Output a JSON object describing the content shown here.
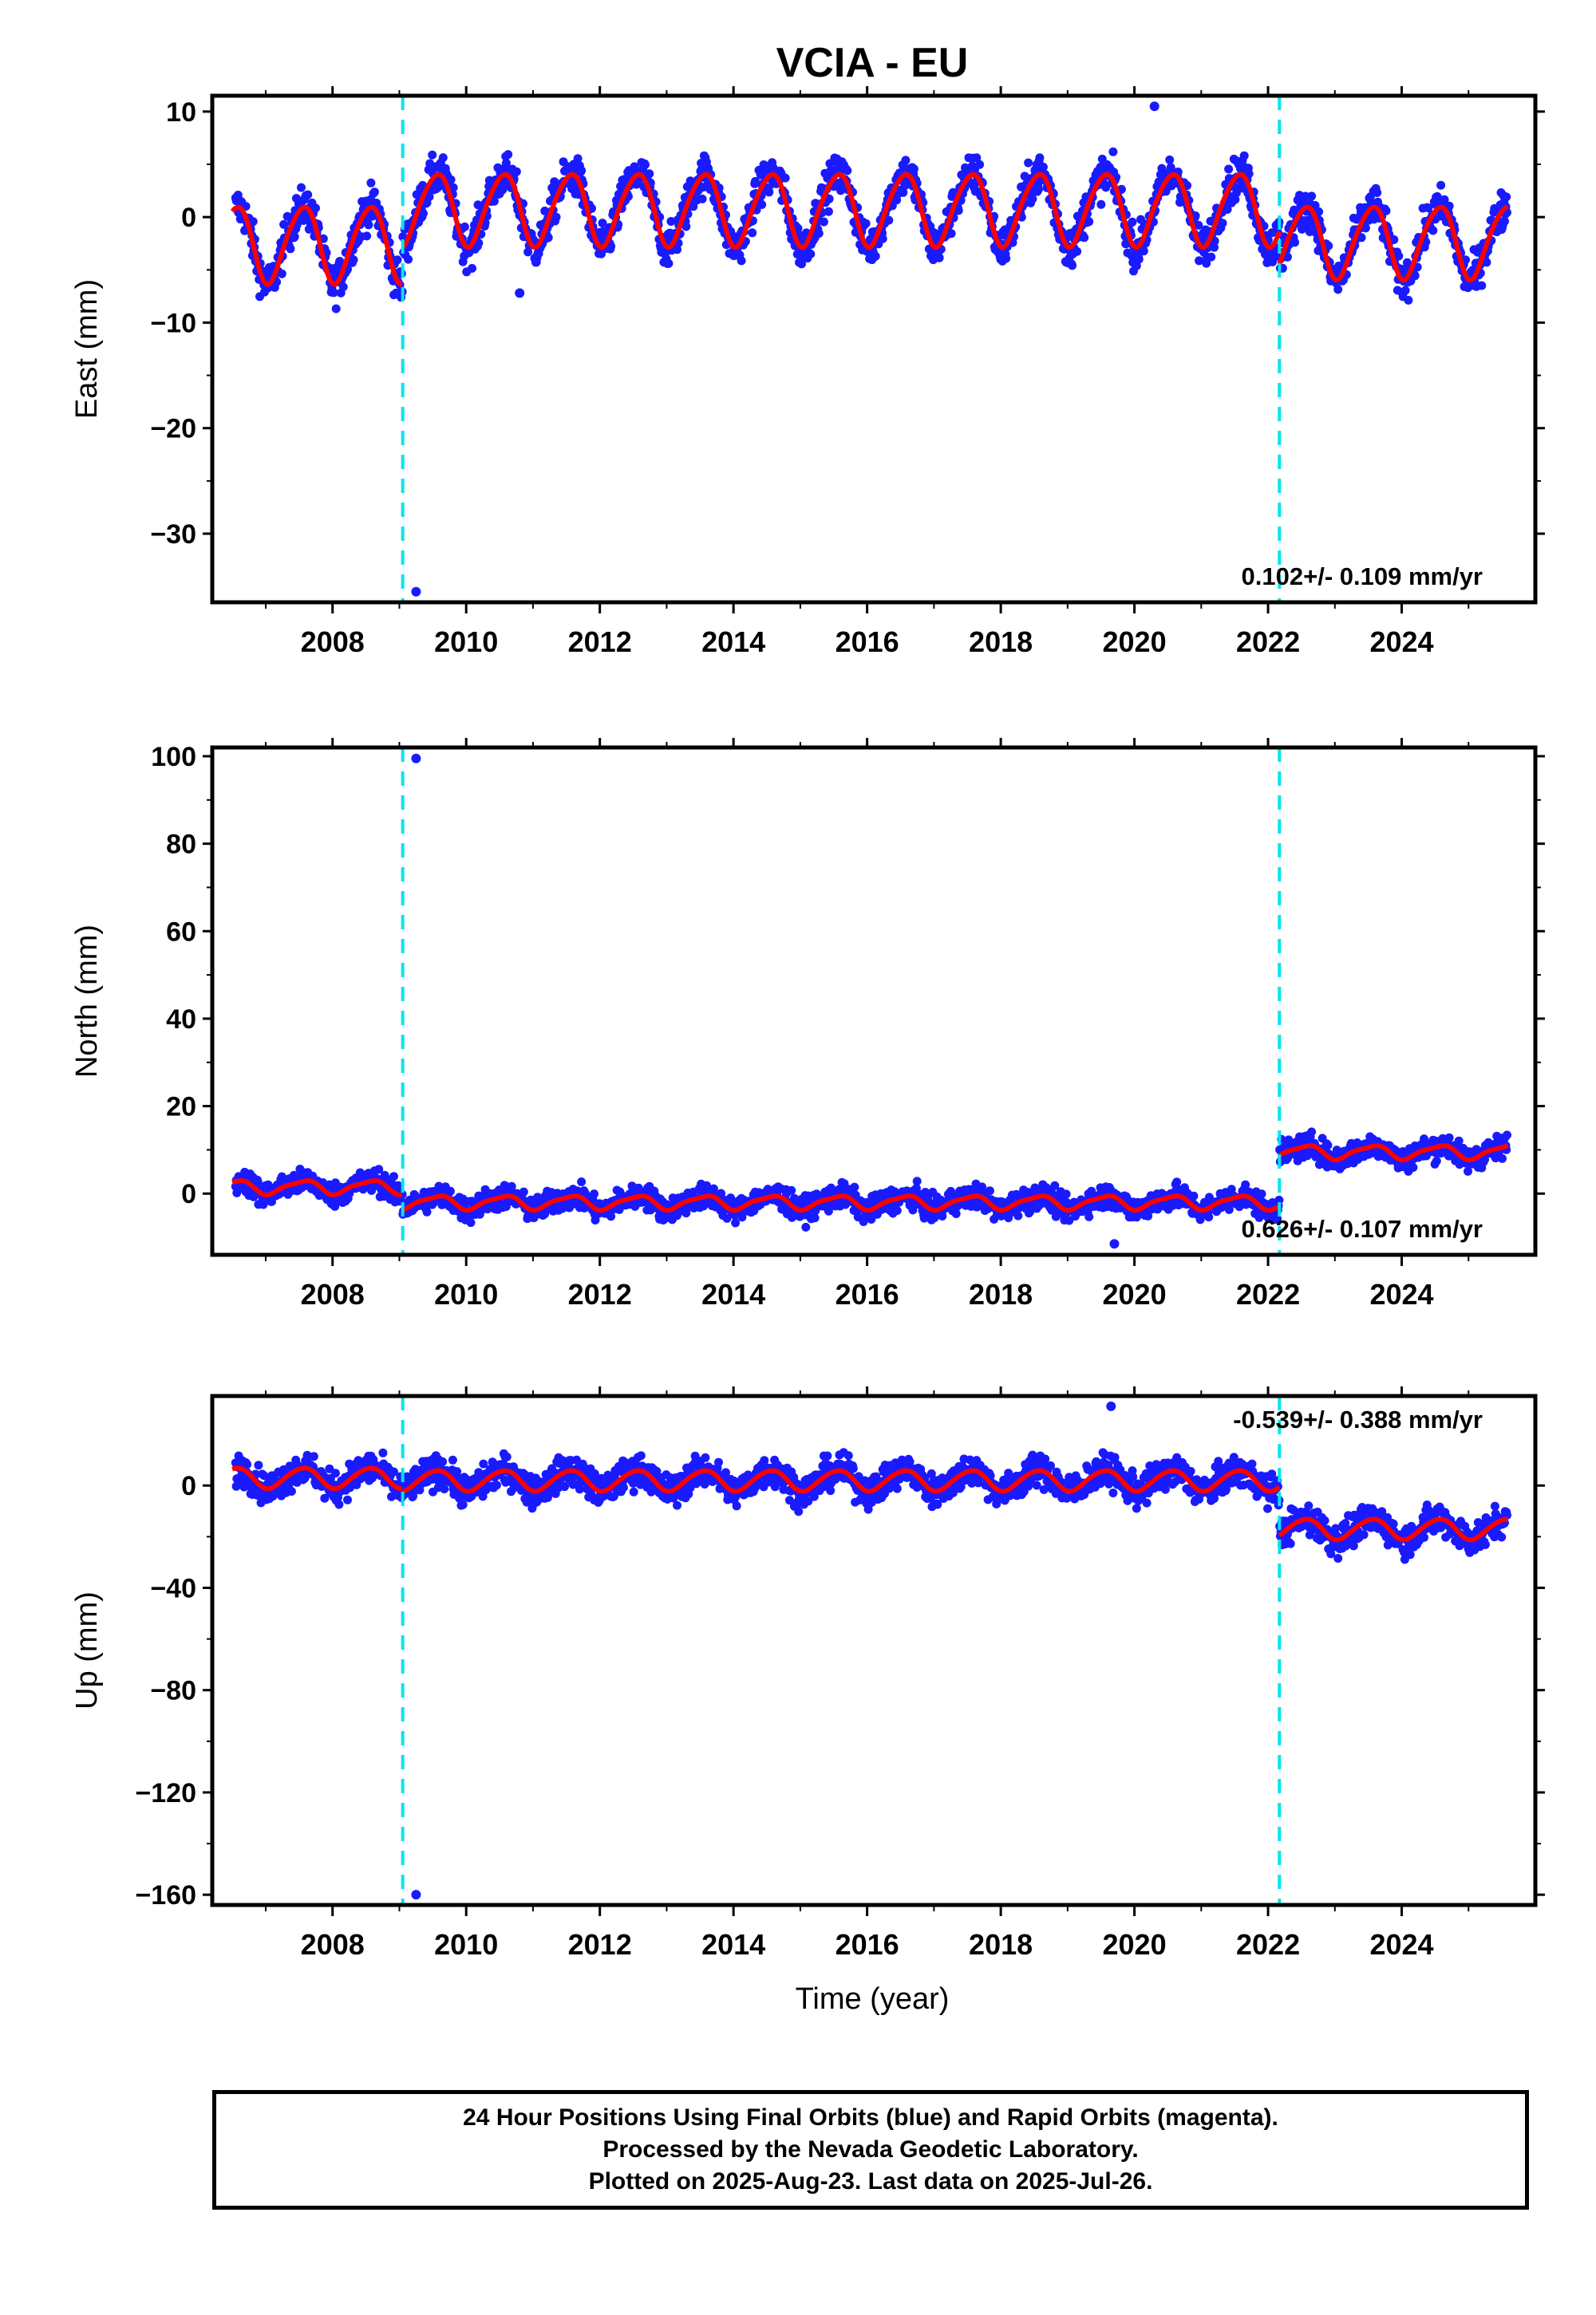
{
  "title": "VCIA - EU",
  "xlabel": "Time (year)",
  "footer": {
    "line1": "24 Hour Positions Using Final Orbits (blue) and Rapid Orbits (magenta).",
    "line2": "Processed by the Nevada Geodetic Laboratory.",
    "line3": "Plotted on 2025-Aug-23. Last data on 2025-Jul-26."
  },
  "colors": {
    "points": "#1a1aff",
    "fit": "#ff0000",
    "breaks": "#00e5ee",
    "frame": "#000000"
  },
  "chart_data": [
    {
      "type": "scatter",
      "ylabel": "East (mm)",
      "rate": "0.102+/- 0.109 mm/yr",
      "xlim": [
        2006.2,
        2026.0
      ],
      "ylim": [
        -36.5,
        11.5
      ],
      "yticks": [
        10,
        0,
        -10,
        -20,
        -30
      ],
      "ytick_labels": [
        "10",
        "0",
        "−10",
        "−20",
        "−30"
      ],
      "xticks": [
        2008,
        2010,
        2012,
        2014,
        2016,
        2018,
        2020,
        2022,
        2024
      ],
      "xtick_labels": [
        "2008",
        "2010",
        "2012",
        "2014",
        "2016",
        "2018",
        "2020",
        "2022",
        "2024"
      ],
      "breaks": [
        2009.05,
        2022.17
      ],
      "fit_segments": [
        {
          "x": [
            2006.5,
            2009.05
          ],
          "offset": -2.5,
          "amplitude": 3.6
        },
        {
          "x": [
            2009.05,
            2022.17
          ],
          "offset": 0.8,
          "amplitude": 3.4
        },
        {
          "x": [
            2022.17,
            2025.6
          ],
          "offset": -2.3,
          "amplitude": 3.4
        }
      ],
      "outliers": [
        {
          "x": 2009.25,
          "y": -35.5
        },
        {
          "x": 2020.3,
          "y": 10.5
        },
        {
          "x": 2010.8,
          "y": -7.2
        }
      ]
    },
    {
      "type": "scatter",
      "ylabel": "North (mm)",
      "rate": "0.626+/- 0.107 mm/yr",
      "xlim": [
        2006.2,
        2026.0
      ],
      "ylim": [
        -14,
        102
      ],
      "yticks": [
        100,
        80,
        60,
        40,
        20,
        0
      ],
      "ytick_labels": [
        "100",
        "80",
        "60",
        "40",
        "20",
        "0"
      ],
      "xticks": [
        2008,
        2010,
        2012,
        2014,
        2016,
        2018,
        2020,
        2022,
        2024
      ],
      "xtick_labels": [
        "2008",
        "2010",
        "2012",
        "2014",
        "2016",
        "2018",
        "2020",
        "2022",
        "2024"
      ],
      "breaks": [
        2009.05,
        2022.17
      ],
      "fit_segments": [
        {
          "x": [
            2006.5,
            2009.05
          ],
          "offset": 1.5,
          "amplitude": 1.5
        },
        {
          "x": [
            2009.05,
            2022.17
          ],
          "offset": -2.0,
          "amplitude": 1.5
        },
        {
          "x": [
            2022.17,
            2025.6
          ],
          "offset": 9.5,
          "amplitude": 1.5
        }
      ],
      "outliers": [
        {
          "x": 2009.25,
          "y": 99.5
        },
        {
          "x": 2019.7,
          "y": -11.5
        }
      ]
    },
    {
      "type": "scatter",
      "ylabel": "Up (mm)",
      "rate": "-0.539+/- 0.388 mm/yr",
      "xlim": [
        2006.2,
        2026.0
      ],
      "ylim": [
        -164,
        35
      ],
      "yticks": [
        0,
        -40,
        -80,
        -120,
        -160
      ],
      "ytick_labels": [
        "0",
        "−40",
        "−80",
        "−120",
        "−160"
      ],
      "xticks": [
        2008,
        2010,
        2012,
        2014,
        2016,
        2018,
        2020,
        2022,
        2024
      ],
      "xtick_labels": [
        "2008",
        "2010",
        "2012",
        "2014",
        "2016",
        "2018",
        "2020",
        "2022",
        "2024"
      ],
      "breaks": [
        2009.05,
        2022.17
      ],
      "fit_segments": [
        {
          "x": [
            2006.5,
            2009.05
          ],
          "offset": 3.0,
          "amplitude": 4.0
        },
        {
          "x": [
            2009.05,
            2022.17
          ],
          "offset": 2.0,
          "amplitude": 4.0
        },
        {
          "x": [
            2022.17,
            2025.6
          ],
          "offset": -17.0,
          "amplitude": 4.0
        }
      ],
      "outliers": [
        {
          "x": 2009.25,
          "y": -160
        },
        {
          "x": 2019.65,
          "y": 31
        }
      ]
    }
  ]
}
